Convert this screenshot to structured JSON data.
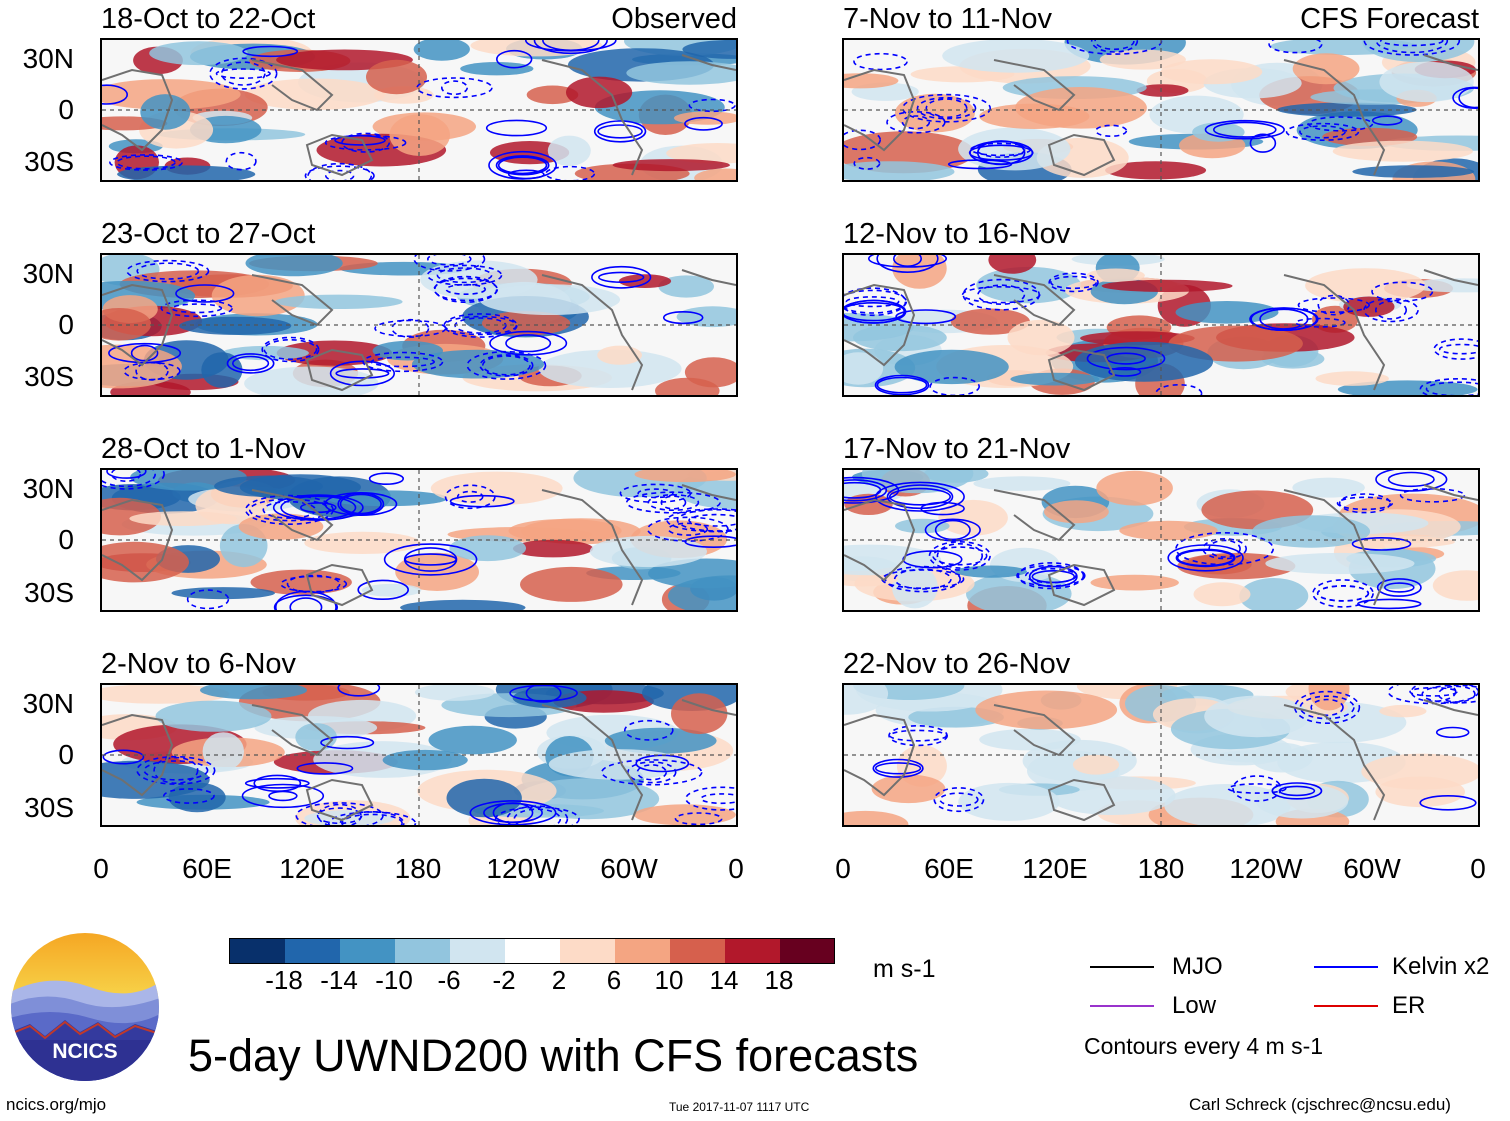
{
  "panels": [
    {
      "title": "18-Oct to 22-Oct",
      "label": "Observed"
    },
    {
      "title": "7-Nov to 11-Nov",
      "label": "CFS Forecast"
    },
    {
      "title": "23-Oct to 27-Oct",
      "label": ""
    },
    {
      "title": "12-Nov to 16-Nov",
      "label": ""
    },
    {
      "title": "28-Oct to 1-Nov",
      "label": ""
    },
    {
      "title": "17-Nov to 21-Nov",
      "label": ""
    },
    {
      "title": "2-Nov to 6-Nov",
      "label": ""
    },
    {
      "title": "22-Nov to 26-Nov",
      "label": ""
    }
  ],
  "chart_data": {
    "type": "heatmap",
    "title": "5-day UWND200 with CFS forecasts",
    "variable": "UWND200",
    "y_tick_labels": [
      "30N",
      "0",
      "30S"
    ],
    "x_tick_labels": [
      "0",
      "60E",
      "120E",
      "180",
      "120W",
      "60W",
      "0"
    ],
    "colorbar": {
      "unit": "m s-1",
      "ticks": [
        "-18",
        "-14",
        "-10",
        "-6",
        "-2",
        "2",
        "6",
        "10",
        "14",
        "18"
      ],
      "colors": [
        "#08306b",
        "#2166ac",
        "#4393c3",
        "#92c5de",
        "#d1e5f0",
        "#ffffff",
        "#fddbc7",
        "#f4a582",
        "#d6604d",
        "#b2182b",
        "#67001f"
      ]
    },
    "legend": [
      {
        "label": "MJO",
        "color": "#000000"
      },
      {
        "label": "Kelvin x2",
        "color": "#0000ff"
      },
      {
        "label": "Low",
        "color": "#9933cc"
      },
      {
        "label": "ER",
        "color": "#dd0000"
      }
    ],
    "contour_note": "Contours every 4 m s-1"
  },
  "footer": {
    "logo_text": "NCICS",
    "url": "ncics.org/mjo",
    "timestamp": "Tue 2017-11-07 1117 UTC",
    "author": "Carl Schreck (cjschrec@ncsu.edu)"
  }
}
